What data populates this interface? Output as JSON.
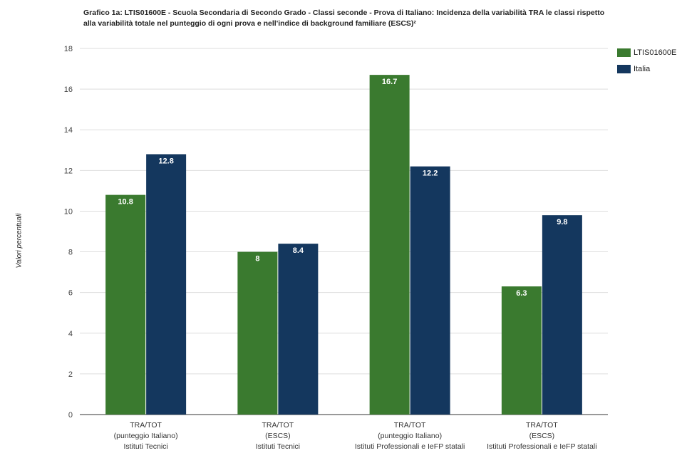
{
  "chart_data": {
    "type": "bar",
    "title": "Grafico 1a: LTIS01600E - Scuola Secondaria di Secondo Grado - Classi seconde - Prova di Italiano: Incidenza della variabilità TRA le classi rispetto alla variabilità totale nel punteggio di ogni prova e nell'indice di background familiare (ESCS)²",
    "title_lines": [
      "Grafico 1a: LTIS01600E - Scuola Secondaria di Secondo Grado - Classi seconde - Prova di Italiano: Incidenza della variabilità TRA le classi rispetto",
      "alla variabilità totale nel punteggio di ogni prova e nell'indice di background familiare (ESCS)²"
    ],
    "ylabel": "Valori percentuali",
    "xlabel": "",
    "ylim": [
      0,
      18
    ],
    "yticks": [
      0,
      2,
      4,
      6,
      8,
      10,
      12,
      14,
      16,
      18
    ],
    "grid": true,
    "legend_position": "top-right",
    "categories": [
      [
        "TRA/TOT",
        "(punteggio Italiano)",
        "Istituti Tecnici"
      ],
      [
        "TRA/TOT",
        "(ESCS)",
        "Istituti Tecnici"
      ],
      [
        "TRA/TOT",
        "(punteggio Italiano)",
        "Istituti Professionali e IeFP statali"
      ],
      [
        "TRA/TOT",
        "(ESCS)",
        "Istituti Professionali e IeFP statali"
      ]
    ],
    "series": [
      {
        "name": "LTIS01600E",
        "color": "#3a7a2f",
        "values": [
          10.8,
          8,
          16.7,
          6.3
        ],
        "labels": [
          "10.8",
          "8",
          "16.7",
          "6.3"
        ]
      },
      {
        "name": "Italia",
        "color": "#14375e",
        "values": [
          12.8,
          8.4,
          12.2,
          9.8
        ],
        "labels": [
          "12.8",
          "8.4",
          "12.2",
          "9.8"
        ]
      }
    ]
  }
}
